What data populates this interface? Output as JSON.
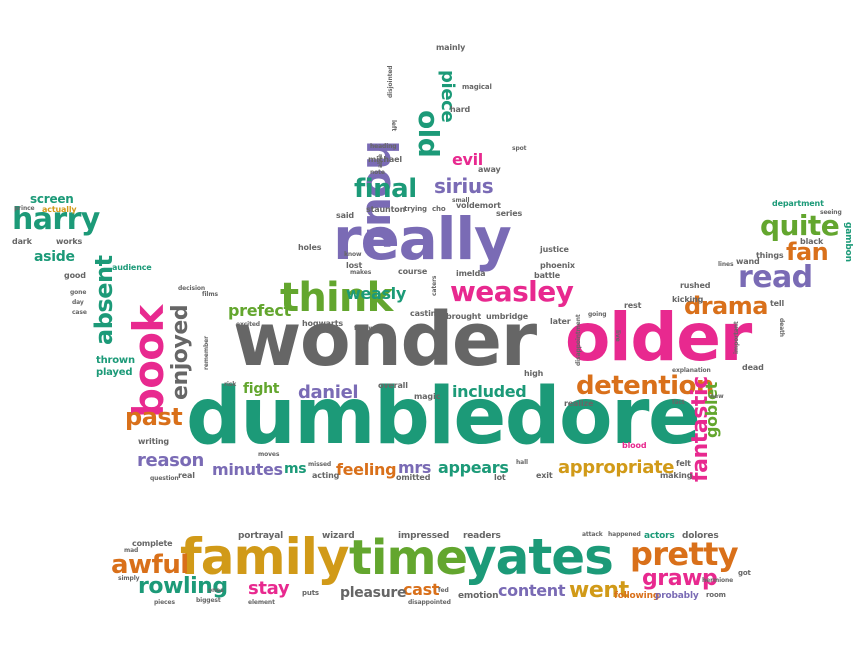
{
  "palette": {
    "teal": "#1c9a78",
    "gray": "#666666",
    "pink": "#e8298f",
    "purple": "#7a6bb5",
    "green": "#63a62e",
    "orange": "#d9701a",
    "gold": "#d19a18"
  },
  "words": [
    {
      "text": "dumbledore",
      "color": "teal"
    },
    {
      "text": "wonder",
      "color": "gray"
    },
    {
      "text": "older",
      "color": "pink"
    },
    {
      "text": "really",
      "color": "purple"
    },
    {
      "text": "family",
      "color": "gold"
    },
    {
      "text": "time",
      "color": "green"
    },
    {
      "text": "yates",
      "color": "teal"
    },
    {
      "text": "think",
      "color": "green"
    },
    {
      "text": "book",
      "color": "pink"
    },
    {
      "text": "hour",
      "color": "purple"
    },
    {
      "text": "weasley",
      "color": "pink"
    },
    {
      "text": "pretty",
      "color": "orange"
    },
    {
      "text": "detention",
      "color": "orange"
    },
    {
      "text": "fantastic",
      "color": "pink"
    },
    {
      "text": "absent",
      "color": "teal"
    },
    {
      "text": "enjoyed",
      "color": "gray"
    },
    {
      "text": "final",
      "color": "teal"
    },
    {
      "text": "read",
      "color": "purple"
    },
    {
      "text": "quite",
      "color": "green"
    },
    {
      "text": "harry",
      "color": "teal"
    },
    {
      "text": "drama",
      "color": "orange"
    },
    {
      "text": "old",
      "color": "teal"
    },
    {
      "text": "sirius",
      "color": "purple"
    },
    {
      "text": "awful",
      "color": "orange"
    },
    {
      "text": "grawp",
      "color": "pink"
    },
    {
      "text": "rowling",
      "color": "teal"
    },
    {
      "text": "appropriate",
      "color": "gold"
    },
    {
      "text": "piece",
      "color": "teal"
    },
    {
      "text": "past",
      "color": "orange"
    },
    {
      "text": "reason",
      "color": "purple"
    },
    {
      "text": "daniel",
      "color": "purple"
    },
    {
      "text": "included",
      "color": "teal"
    },
    {
      "text": "fan",
      "color": "orange"
    },
    {
      "text": "prefect",
      "color": "green"
    },
    {
      "text": "weasly",
      "color": "teal"
    },
    {
      "text": "went",
      "color": "gold"
    },
    {
      "text": "content",
      "color": "purple"
    },
    {
      "text": "goblet",
      "color": "green"
    },
    {
      "text": "minutes",
      "color": "purple"
    },
    {
      "text": "feeling",
      "color": "orange"
    },
    {
      "text": "mrs",
      "color": "purple"
    },
    {
      "text": "appears",
      "color": "teal"
    },
    {
      "text": "evil",
      "color": "pink"
    },
    {
      "text": "stay",
      "color": "pink"
    },
    {
      "text": "cast",
      "color": "orange"
    },
    {
      "text": "pleasure",
      "color": "gray"
    },
    {
      "text": "fight",
      "color": "green"
    },
    {
      "text": "screen",
      "color": "teal"
    },
    {
      "text": "aside",
      "color": "teal"
    },
    {
      "text": "thrown",
      "color": "teal"
    },
    {
      "text": "played",
      "color": "teal"
    },
    {
      "text": "portrayal",
      "color": "gray"
    },
    {
      "text": "wizard",
      "color": "gray"
    },
    {
      "text": "impressed",
      "color": "gray"
    },
    {
      "text": "readers",
      "color": "gray"
    },
    {
      "text": "emotion",
      "color": "gray"
    },
    {
      "text": "following",
      "color": "orange"
    },
    {
      "text": "probably",
      "color": "purple"
    },
    {
      "text": "dolores",
      "color": "gray"
    },
    {
      "text": "actors",
      "color": "teal"
    },
    {
      "text": "department",
      "color": "teal"
    },
    {
      "text": "gambon",
      "color": "teal"
    },
    {
      "text": "ms",
      "color": "teal"
    },
    {
      "text": "voldemort",
      "color": "gray"
    },
    {
      "text": "umbridge",
      "color": "gray"
    },
    {
      "text": "brought",
      "color": "gray"
    },
    {
      "text": "phoenix",
      "color": "gray"
    },
    {
      "text": "justice",
      "color": "gray"
    },
    {
      "text": "audience",
      "color": "teal"
    },
    {
      "text": "actually",
      "color": "gold"
    },
    {
      "text": "michael",
      "color": "gray"
    },
    {
      "text": "staunton",
      "color": "gray"
    },
    {
      "text": "mainly",
      "color": "gray"
    },
    {
      "text": "magical",
      "color": "gray"
    },
    {
      "text": "holes",
      "color": "gray"
    },
    {
      "text": "lost",
      "color": "gray"
    },
    {
      "text": "course",
      "color": "gray"
    },
    {
      "text": "battle",
      "color": "gray"
    },
    {
      "text": "casting",
      "color": "gray"
    },
    {
      "text": "hogwarts",
      "color": "gray"
    },
    {
      "text": "overall",
      "color": "gray"
    },
    {
      "text": "magic",
      "color": "gray"
    },
    {
      "text": "acting",
      "color": "gray"
    },
    {
      "text": "omitted",
      "color": "gray"
    },
    {
      "text": "high",
      "color": "gray"
    },
    {
      "text": "realize",
      "color": "gray"
    },
    {
      "text": "blood",
      "color": "pink"
    },
    {
      "text": "making",
      "color": "gray"
    },
    {
      "text": "dead",
      "color": "gray"
    },
    {
      "text": "black",
      "color": "gray"
    },
    {
      "text": "things",
      "color": "gray"
    },
    {
      "text": "wand",
      "color": "gray"
    },
    {
      "text": "rushed",
      "color": "gray"
    },
    {
      "text": "kicking",
      "color": "gray"
    },
    {
      "text": "rest",
      "color": "gray"
    },
    {
      "text": "tell",
      "color": "gray"
    },
    {
      "text": "later",
      "color": "gray"
    },
    {
      "text": "imelda",
      "color": "gray"
    },
    {
      "text": "series",
      "color": "gray"
    },
    {
      "text": "away",
      "color": "gray"
    },
    {
      "text": "hard",
      "color": "gray"
    },
    {
      "text": "said",
      "color": "gray"
    },
    {
      "text": "trying",
      "color": "gray"
    },
    {
      "text": "cho",
      "color": "gray"
    },
    {
      "text": "good",
      "color": "gray"
    },
    {
      "text": "dark",
      "color": "gray"
    },
    {
      "text": "works",
      "color": "gray"
    },
    {
      "text": "prince",
      "color": "gray"
    },
    {
      "text": "writing",
      "color": "gray"
    },
    {
      "text": "real",
      "color": "gray"
    },
    {
      "text": "exit",
      "color": "gray"
    },
    {
      "text": "felt",
      "color": "gray"
    },
    {
      "text": "lot",
      "color": "gray"
    },
    {
      "text": "complete",
      "color": "gray"
    },
    {
      "text": "simply",
      "color": "gray"
    },
    {
      "text": "biggest",
      "color": "gray"
    },
    {
      "text": "ones",
      "color": "gray"
    },
    {
      "text": "puts",
      "color": "gray"
    },
    {
      "text": "room",
      "color": "gray"
    },
    {
      "text": "got",
      "color": "gray"
    },
    {
      "text": "happened",
      "color": "gray"
    },
    {
      "text": "attack",
      "color": "gray"
    },
    {
      "text": "disappointed",
      "color": "gray"
    },
    {
      "text": "disappointment",
      "color": "gray"
    },
    {
      "text": "important",
      "color": "gray"
    },
    {
      "text": "decision",
      "color": "gray"
    },
    {
      "text": "excited",
      "color": "gray"
    },
    {
      "text": "followed",
      "color": "gray"
    },
    {
      "text": "films",
      "color": "gray"
    },
    {
      "text": "remember",
      "color": "gray"
    },
    {
      "text": "left",
      "color": "gray"
    },
    {
      "text": "heading",
      "color": "gray"
    },
    {
      "text": "note",
      "color": "gray"
    },
    {
      "text": "able",
      "color": "gray"
    },
    {
      "text": "spot",
      "color": "gray"
    },
    {
      "text": "small",
      "color": "gray"
    },
    {
      "text": "know",
      "color": "gray"
    },
    {
      "text": "makes",
      "color": "gray"
    },
    {
      "text": "gone",
      "color": "gray"
    },
    {
      "text": "day",
      "color": "gray"
    },
    {
      "text": "case",
      "color": "gray"
    },
    {
      "text": "fact",
      "color": "gray"
    },
    {
      "text": "new",
      "color": "gray"
    },
    {
      "text": "hall",
      "color": "gray"
    },
    {
      "text": "missed",
      "color": "gray"
    },
    {
      "text": "question",
      "color": "gray"
    },
    {
      "text": "risk",
      "color": "gray"
    },
    {
      "text": "lines",
      "color": "gray"
    },
    {
      "text": "death",
      "color": "gray"
    },
    {
      "text": "seeing",
      "color": "gray"
    },
    {
      "text": "going",
      "color": "gray"
    },
    {
      "text": "live",
      "color": "gray"
    },
    {
      "text": "disjointed",
      "color": "gray"
    },
    {
      "text": "explanation",
      "color": "gray"
    },
    {
      "text": "moves",
      "color": "gray"
    },
    {
      "text": "caters",
      "color": "gray"
    },
    {
      "text": "element",
      "color": "gray"
    },
    {
      "text": "hermione",
      "color": "gray"
    },
    {
      "text": "mad",
      "color": "gray"
    },
    {
      "text": "pieces",
      "color": "gray"
    },
    {
      "text": "fed",
      "color": "gray"
    }
  ]
}
